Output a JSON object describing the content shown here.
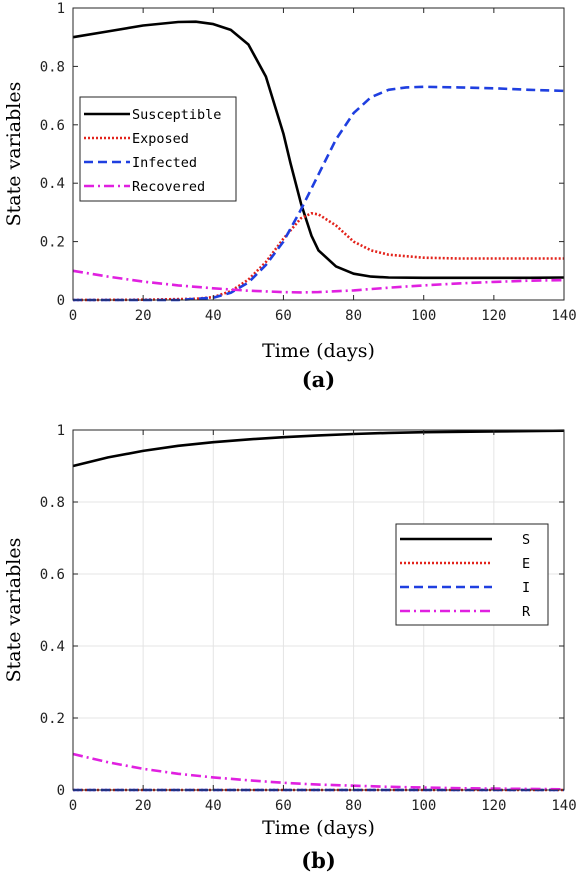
{
  "chart_data": [
    {
      "type": "line",
      "panel_label": "(a)",
      "xlabel": "Time (days)",
      "ylabel": "State variables",
      "xlim": [
        0,
        140
      ],
      "ylim": [
        0,
        1
      ],
      "xticks": [
        "0",
        "20",
        "40",
        "60",
        "80",
        "100",
        "120",
        "140"
      ],
      "yticks": [
        "0",
        "0.2",
        "0.4",
        "0.6",
        "0.8",
        "1"
      ],
      "grid": false,
      "legend_position": "left",
      "series": [
        {
          "name": "Susceptible",
          "color": "#000000",
          "style": "solid",
          "x": [
            0,
            10,
            20,
            30,
            35,
            40,
            45,
            50,
            55,
            60,
            62,
            65,
            68,
            70,
            75,
            80,
            85,
            90,
            100,
            110,
            120,
            130,
            140
          ],
          "y": [
            0.9,
            0.92,
            0.94,
            0.952,
            0.953,
            0.945,
            0.925,
            0.875,
            0.765,
            0.57,
            0.47,
            0.33,
            0.22,
            0.17,
            0.115,
            0.09,
            0.08,
            0.077,
            0.076,
            0.076,
            0.076,
            0.076,
            0.077
          ]
        },
        {
          "name": "Exposed",
          "color": "#e3231b",
          "style": "dotted",
          "x": [
            0,
            20,
            35,
            40,
            45,
            50,
            55,
            60,
            65,
            68,
            70,
            75,
            80,
            85,
            90,
            100,
            110,
            120,
            130,
            140
          ],
          "y": [
            0.0,
            0.001,
            0.004,
            0.01,
            0.03,
            0.07,
            0.13,
            0.21,
            0.28,
            0.297,
            0.293,
            0.255,
            0.2,
            0.17,
            0.155,
            0.145,
            0.142,
            0.142,
            0.142,
            0.142
          ]
        },
        {
          "name": "Infected",
          "color": "#1f3fe0",
          "style": "dashed",
          "x": [
            0,
            30,
            40,
            45,
            50,
            55,
            60,
            65,
            70,
            75,
            80,
            85,
            90,
            95,
            100,
            110,
            120,
            130,
            140
          ],
          "y": [
            0.0,
            0.0,
            0.008,
            0.025,
            0.06,
            0.12,
            0.2,
            0.31,
            0.43,
            0.55,
            0.64,
            0.695,
            0.72,
            0.728,
            0.73,
            0.728,
            0.725,
            0.72,
            0.716
          ]
        },
        {
          "name": "Recovered",
          "color": "#e020e0",
          "style": "dashdot",
          "x": [
            0,
            10,
            20,
            30,
            40,
            50,
            60,
            65,
            70,
            80,
            90,
            100,
            110,
            120,
            130,
            140
          ],
          "y": [
            0.1,
            0.08,
            0.063,
            0.05,
            0.04,
            0.032,
            0.027,
            0.026,
            0.027,
            0.033,
            0.042,
            0.05,
            0.057,
            0.062,
            0.066,
            0.068
          ]
        }
      ]
    },
    {
      "type": "line",
      "panel_label": "(b)",
      "xlabel": "Time (days)",
      "ylabel": "State variables",
      "xlim": [
        0,
        140
      ],
      "ylim": [
        0,
        1
      ],
      "xticks": [
        "0",
        "20",
        "40",
        "60",
        "80",
        "100",
        "120",
        "140"
      ],
      "yticks": [
        "0",
        "0.2",
        "0.4",
        "0.6",
        "0.8",
        "1"
      ],
      "grid": true,
      "legend_position": "right",
      "series": [
        {
          "name": "S",
          "color": "#000000",
          "style": "solid",
          "x": [
            0,
            10,
            20,
            30,
            40,
            50,
            60,
            70,
            80,
            90,
            100,
            110,
            120,
            130,
            140
          ],
          "y": [
            0.9,
            0.924,
            0.942,
            0.956,
            0.966,
            0.974,
            0.98,
            0.985,
            0.989,
            0.992,
            0.994,
            0.995,
            0.996,
            0.997,
            0.998
          ]
        },
        {
          "name": "E",
          "color": "#e3231b",
          "style": "dotted",
          "x": [
            0,
            140
          ],
          "y": [
            0.0,
            0.0
          ]
        },
        {
          "name": "I",
          "color": "#1f3fe0",
          "style": "dashed",
          "x": [
            0,
            140
          ],
          "y": [
            0.0,
            0.0
          ]
        },
        {
          "name": "R",
          "color": "#e020e0",
          "style": "dashdot",
          "x": [
            0,
            10,
            20,
            30,
            40,
            50,
            60,
            70,
            80,
            90,
            100,
            110,
            120,
            130,
            140
          ],
          "y": [
            0.1,
            0.077,
            0.059,
            0.045,
            0.035,
            0.027,
            0.02,
            0.015,
            0.012,
            0.009,
            0.007,
            0.005,
            0.004,
            0.003,
            0.002
          ]
        }
      ]
    }
  ]
}
